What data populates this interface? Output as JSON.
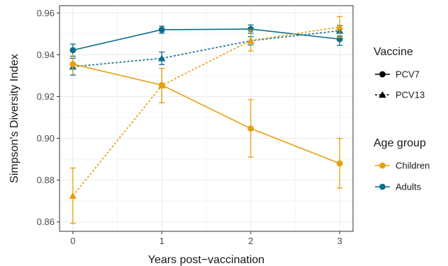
{
  "chart_data": {
    "type": "line",
    "xlabel": "Years post−vaccination",
    "ylabel": "Simpson's Diversity Index",
    "x": [
      0,
      1,
      2,
      3
    ],
    "x_ticks": [
      "0",
      "1",
      "2",
      "3"
    ],
    "y_ticks": [
      "0.86",
      "0.88",
      "0.90",
      "0.92",
      "0.94",
      "0.96"
    ],
    "y_tick_values": [
      0.86,
      0.88,
      0.9,
      0.92,
      0.94,
      0.96
    ],
    "xlim": [
      -0.15,
      3.15
    ],
    "ylim": [
      0.8555,
      0.9635
    ],
    "grid": true,
    "legend_placement": "right",
    "series": [
      {
        "group": "Adults",
        "vaccine": "PCV7",
        "color": "#0E6E8C",
        "linestyle": "solid",
        "marker": "circle",
        "values": [
          0.9422,
          0.952,
          0.9523,
          0.9475
        ],
        "error_low": [
          0.9393,
          0.9503,
          0.9503,
          0.9445
        ],
        "error_high": [
          0.9451,
          0.9537,
          0.9543,
          0.9505
        ]
      },
      {
        "group": "Adults",
        "vaccine": "PCV13",
        "color": "#0E6E8C",
        "linestyle": "dashed",
        "marker": "triangle",
        "values": [
          0.9343,
          0.9383,
          0.9467,
          0.9515
        ],
        "error_low": [
          0.9303,
          0.9353,
          0.9447,
          0.949
        ],
        "error_high": [
          0.9383,
          0.9413,
          0.9487,
          0.954
        ]
      },
      {
        "group": "Children",
        "vaccine": "PCV7",
        "color": "#E6A00F",
        "linestyle": "solid",
        "marker": "circle",
        "values": [
          0.9355,
          0.9255,
          0.9047,
          0.888
        ],
        "error_low": [
          0.9305,
          0.9175,
          0.891,
          0.8762
        ],
        "error_high": [
          0.9405,
          0.9335,
          0.9185,
          0.9
        ],
        "error_cap": [
          false,
          false,
          true,
          true
        ]
      },
      {
        "group": "Children",
        "vaccine": "PCV13",
        "color": "#E6A00F",
        "linestyle": "dashed",
        "marker": "triangle",
        "values": [
          0.8725,
          0.9253,
          0.9468,
          0.9533
        ],
        "error_low": [
          0.8593,
          0.917,
          0.9418,
          0.9483
        ],
        "error_high": [
          0.8858,
          0.9335,
          0.9518,
          0.9583
        ]
      }
    ],
    "legends": [
      {
        "title": "Vaccine",
        "items": [
          {
            "label": "PCV7",
            "marker": "circle",
            "linestyle": "solid"
          },
          {
            "label": "PCV13",
            "marker": "triangle",
            "linestyle": "dashed"
          }
        ]
      },
      {
        "title": "Age group",
        "items": [
          {
            "label": "Children",
            "color": "#E6A00F"
          },
          {
            "label": "Adults",
            "color": "#0E6E8C"
          }
        ]
      }
    ]
  }
}
